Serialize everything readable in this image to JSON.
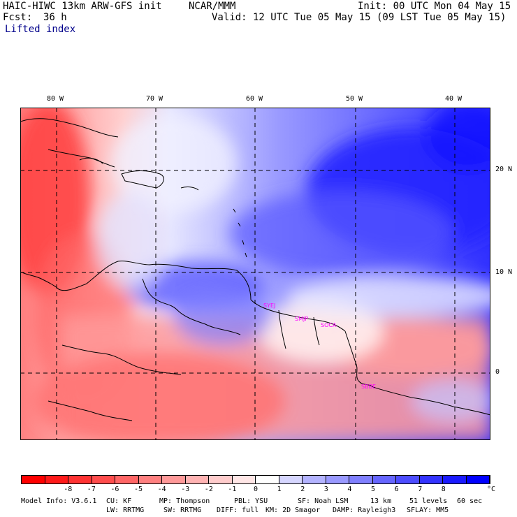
{
  "header": {
    "model": "HAIC-HIWC 13km ARW-GFS init",
    "org": "NCAR/MMM",
    "init": "Init: 00 UTC Mon 04 May 15",
    "fcst_label": "Fcst:",
    "fcst_value": "36 h",
    "valid": "Valid: 12 UTC Tue 05 May 15 (09 LST Tue 05 May 15)",
    "field": "Lifted index"
  },
  "map": {
    "lon_labels": [
      "80 W",
      "70 W",
      "60 W",
      "50 W",
      "40 W"
    ],
    "lat_labels": [
      "20 N",
      "10 N",
      "0"
    ],
    "stations": [
      "SYEJ",
      "SMJP",
      "SOCA",
      "SBBE"
    ],
    "station_color": "#ff00ff"
  },
  "colorbar": {
    "labels": [
      "-8",
      "-7",
      "-6",
      "-5",
      "-4",
      "-3",
      "-2",
      "-1",
      "0",
      "1",
      "2",
      "3",
      "4",
      "5",
      "6",
      "7",
      "8"
    ],
    "unit": "°C",
    "colors": [
      "#ff0000",
      "#ff1a1a",
      "#ff3333",
      "#ff4d4d",
      "#ff6666",
      "#ff8080",
      "#ff9999",
      "#ffb3b3",
      "#ffcccc",
      "#ffe6e6",
      "#ffffff",
      "#d6d6ff",
      "#b3b3ff",
      "#9999ff",
      "#8080ff",
      "#6666ff",
      "#4d4dff",
      "#3333ff",
      "#1a1aff",
      "#0000ff"
    ]
  },
  "footer": {
    "line1": [
      "Model Info: V3.6.1",
      "CU: KF",
      "MP: Thompson",
      "PBL: YSU",
      "SF: Noah LSM",
      "13 km",
      "51 levels",
      "60 sec"
    ],
    "line2": [
      "LW: RRTMG",
      "SW: RRTMG",
      "DIFF: full",
      "KM: 2D Smagor",
      "DAMP: Rayleigh3",
      "SFLAY: MM5"
    ]
  }
}
